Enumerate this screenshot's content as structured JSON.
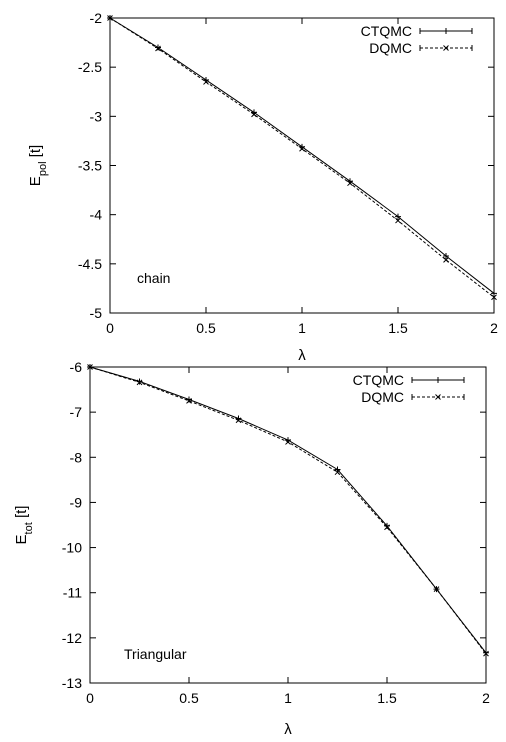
{
  "chart_data": [
    {
      "type": "line",
      "x": [
        0,
        0.25,
        0.5,
        0.75,
        1.0,
        1.25,
        1.5,
        1.75,
        2.0
      ],
      "series": [
        {
          "name": "CTQMC",
          "values": [
            -2.0,
            -2.3,
            -2.63,
            -2.96,
            -3.31,
            -3.66,
            -4.02,
            -4.42,
            -4.8
          ],
          "style": "solid",
          "marker": "plus"
        },
        {
          "name": "DQMC",
          "values": [
            -2.0,
            -2.31,
            -2.65,
            -2.98,
            -3.33,
            -3.68,
            -4.06,
            -4.46,
            -4.84
          ],
          "style": "dashed",
          "marker": "x"
        }
      ],
      "xlabel": "λ",
      "ylabel_main": "E",
      "ylabel_sub": "pol",
      "ylabel_suffix": " [t]",
      "xlim": [
        0,
        2
      ],
      "ylim": [
        -5,
        -2
      ],
      "xticks": [
        "0",
        "0.5",
        "1",
        "1.5",
        "2"
      ],
      "xtick_values": [
        0,
        0.5,
        1,
        1.5,
        2
      ],
      "yticks": [
        "-2",
        "-2.5",
        "-3",
        "-3.5",
        "-4",
        "-4.5",
        "-5"
      ],
      "ytick_values": [
        -2,
        -2.5,
        -3,
        -3.5,
        -4,
        -4.5,
        -5
      ],
      "annotation": "chain",
      "legend_position": "top-right",
      "grid": false
    },
    {
      "type": "line",
      "x": [
        0,
        0.25,
        0.5,
        0.75,
        1.0,
        1.25,
        1.5,
        1.75,
        2.0
      ],
      "series": [
        {
          "name": "CTQMC",
          "values": [
            -6.0,
            -6.32,
            -6.72,
            -7.14,
            -7.62,
            -8.27,
            -9.52,
            -10.92,
            -12.33
          ],
          "style": "solid",
          "marker": "plus"
        },
        {
          "name": "DQMC",
          "values": [
            -6.0,
            -6.34,
            -6.75,
            -7.18,
            -7.66,
            -8.33,
            -9.55,
            -10.92,
            -12.35
          ],
          "style": "dashed",
          "marker": "x"
        }
      ],
      "xlabel": "λ",
      "ylabel_main": "E",
      "ylabel_sub": "tot",
      "ylabel_suffix": " [t]",
      "xlim": [
        0,
        2
      ],
      "ylim": [
        -13,
        -6
      ],
      "xticks": [
        "0",
        "0.5",
        "1",
        "1.5",
        "2"
      ],
      "xtick_values": [
        0,
        0.5,
        1,
        1.5,
        2
      ],
      "yticks": [
        "-6",
        "-7",
        "-8",
        "-9",
        "-10",
        "-11",
        "-12",
        "-13"
      ],
      "ytick_values": [
        -6,
        -7,
        -8,
        -9,
        -10,
        -11,
        -12,
        -13
      ],
      "annotation": "Triangular",
      "legend_position": "top-right",
      "grid": false
    }
  ]
}
